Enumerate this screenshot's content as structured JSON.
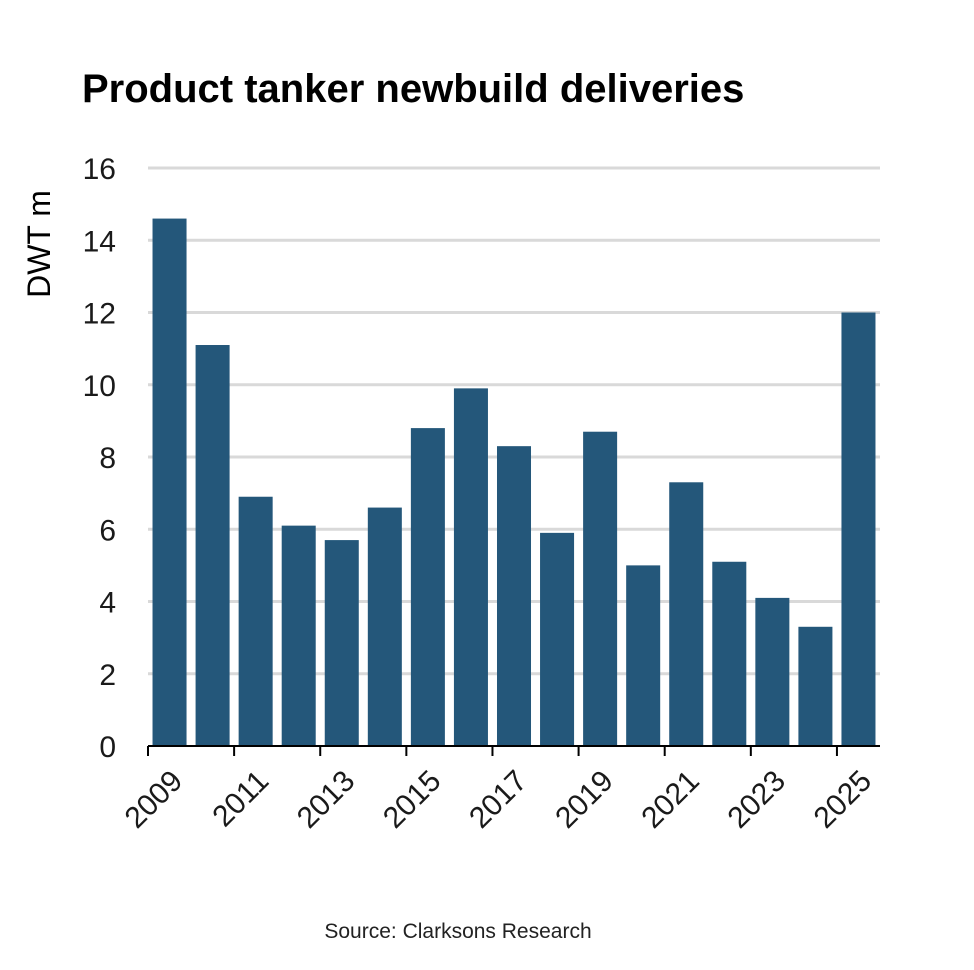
{
  "chart_data": {
    "type": "bar",
    "title": "Product tanker newbuild deliveries",
    "xlabel": "",
    "ylabel": "DWT m",
    "categories": [
      "2009",
      "2010",
      "2011",
      "2012",
      "2013",
      "2014",
      "2015",
      "2016",
      "2017",
      "2018",
      "2019",
      "2020",
      "2021",
      "2022",
      "2023",
      "2024",
      "2025"
    ],
    "x_tick_labels": [
      "2009",
      "2011",
      "2013",
      "2015",
      "2017",
      "2019",
      "2021",
      "2023",
      "2025"
    ],
    "values": [
      14.6,
      11.1,
      6.9,
      6.1,
      5.7,
      6.6,
      8.8,
      9.9,
      8.3,
      5.9,
      8.7,
      5.0,
      7.3,
      5.1,
      4.1,
      3.3,
      12.0
    ],
    "ylim": [
      0,
      16
    ],
    "y_ticks": [
      0,
      2,
      4,
      6,
      8,
      10,
      12,
      14,
      16
    ],
    "grid": true,
    "bar_color": "#24577a",
    "grid_color": "#d9d9d9",
    "source": "Source: Clarksons Research"
  }
}
